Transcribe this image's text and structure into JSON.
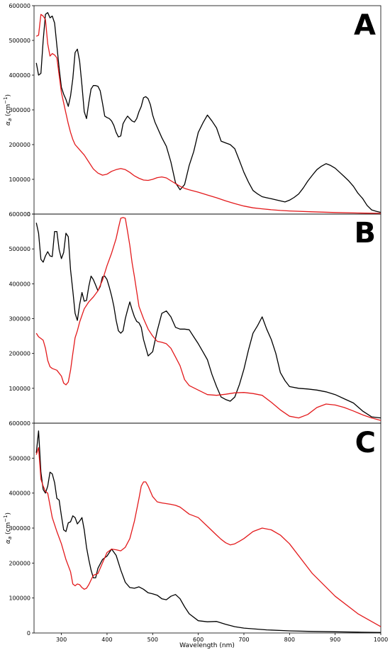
{
  "figure": {
    "xlabel": "Wavelength (nm)",
    "ylabel_main": "α",
    "ylabel_sub": "a",
    "ylabel_unit": " (cm",
    "ylabel_exp": "−1",
    "ylabel_close": ")"
  },
  "chart_data": [
    {
      "type": "line",
      "panel_label": "A",
      "xlim": [
        240,
        1000
      ],
      "ylim": [
        0,
        600000
      ],
      "yticks": [
        "0",
        "100000",
        "200000",
        "300000",
        "400000",
        "500000",
        "600000"
      ],
      "grid": false,
      "series": [
        {
          "color": "#000000",
          "x": [
            245,
            250,
            255,
            260,
            265,
            270,
            275,
            280,
            285,
            290,
            295,
            300,
            305,
            310,
            315,
            320,
            325,
            330,
            335,
            340,
            345,
            350,
            355,
            360,
            365,
            370,
            375,
            380,
            385,
            390,
            395,
            400,
            405,
            410,
            415,
            420,
            425,
            430,
            435,
            440,
            445,
            450,
            455,
            460,
            465,
            470,
            475,
            480,
            485,
            490,
            495,
            500,
            505,
            510,
            520,
            530,
            540,
            550,
            560,
            570,
            580,
            590,
            600,
            610,
            620,
            630,
            640,
            650,
            660,
            670,
            680,
            690,
            700,
            710,
            720,
            730,
            740,
            750,
            760,
            770,
            780,
            790,
            800,
            810,
            820,
            830,
            840,
            850,
            860,
            870,
            880,
            890,
            900,
            910,
            920,
            930,
            940,
            950,
            960,
            970,
            980,
            990,
            1000
          ],
          "y": [
            435000,
            400000,
            405000,
            500000,
            575000,
            580000,
            565000,
            570000,
            550000,
            485000,
            420000,
            365000,
            345000,
            330000,
            310000,
            340000,
            390000,
            465000,
            475000,
            440000,
            370000,
            295000,
            275000,
            320000,
            360000,
            370000,
            370000,
            368000,
            355000,
            320000,
            282000,
            278000,
            275000,
            268000,
            255000,
            235000,
            222000,
            225000,
            260000,
            272000,
            282000,
            275000,
            268000,
            265000,
            275000,
            295000,
            310000,
            335000,
            338000,
            332000,
            315000,
            285000,
            265000,
            250000,
            220000,
            195000,
            150000,
            90000,
            70000,
            85000,
            140000,
            180000,
            235000,
            262000,
            285000,
            268000,
            248000,
            210000,
            205000,
            200000,
            188000,
            155000,
            120000,
            92000,
            68000,
            58000,
            50000,
            47000,
            44000,
            41000,
            38000,
            35000,
            40000,
            48000,
            58000,
            75000,
            95000,
            112000,
            128000,
            138000,
            145000,
            140000,
            132000,
            120000,
            108000,
            95000,
            80000,
            60000,
            45000,
            25000,
            12000,
            8000,
            5000
          ]
        },
        {
          "color": "#e31a1c",
          "x": [
            245,
            250,
            255,
            260,
            265,
            270,
            275,
            280,
            285,
            290,
            295,
            300,
            305,
            310,
            315,
            320,
            325,
            330,
            340,
            350,
            360,
            370,
            380,
            390,
            400,
            410,
            420,
            430,
            440,
            450,
            460,
            470,
            480,
            490,
            500,
            510,
            520,
            530,
            540,
            550,
            560,
            570,
            580,
            600,
            620,
            640,
            660,
            680,
            700,
            720,
            740,
            760,
            780,
            800,
            850,
            900,
            950,
            1000
          ],
          "y": [
            512000,
            515000,
            575000,
            570000,
            560000,
            490000,
            455000,
            462000,
            458000,
            450000,
            400000,
            350000,
            320000,
            290000,
            260000,
            235000,
            215000,
            200000,
            185000,
            170000,
            150000,
            130000,
            118000,
            112000,
            115000,
            123000,
            128000,
            131000,
            128000,
            120000,
            110000,
            103000,
            98000,
            97000,
            100000,
            105000,
            107000,
            104000,
            96000,
            88000,
            80000,
            74000,
            70000,
            63000,
            55000,
            47000,
            38000,
            30000,
            23000,
            18000,
            15000,
            12500,
            10500,
            9000,
            6500,
            4500,
            3000,
            2000
          ]
        }
      ]
    },
    {
      "type": "line",
      "panel_label": "B",
      "xlim": [
        240,
        1000
      ],
      "ylim": [
        0,
        600000
      ],
      "yticks": [
        "100000",
        "200000",
        "300000",
        "400000",
        "500000",
        "600000"
      ],
      "grid": false,
      "series": [
        {
          "color": "#000000",
          "x": [
            245,
            250,
            255,
            260,
            265,
            270,
            275,
            280,
            285,
            290,
            295,
            300,
            305,
            310,
            315,
            320,
            325,
            330,
            335,
            340,
            345,
            350,
            355,
            360,
            365,
            370,
            375,
            380,
            385,
            390,
            395,
            400,
            405,
            410,
            415,
            420,
            425,
            430,
            435,
            440,
            445,
            450,
            455,
            460,
            465,
            470,
            475,
            480,
            490,
            500,
            510,
            520,
            530,
            540,
            550,
            560,
            570,
            580,
            590,
            600,
            610,
            620,
            630,
            640,
            650,
            660,
            670,
            680,
            690,
            700,
            710,
            720,
            730,
            740,
            750,
            760,
            770,
            780,
            790,
            800,
            820,
            840,
            860,
            880,
            900,
            920,
            940,
            960,
            980,
            1000
          ],
          "y": [
            575000,
            545000,
            470000,
            462000,
            480000,
            492000,
            480000,
            478000,
            550000,
            550000,
            498000,
            472000,
            490000,
            545000,
            535000,
            440000,
            380000,
            315000,
            295000,
            340000,
            375000,
            350000,
            352000,
            392000,
            422000,
            412000,
            396000,
            380000,
            392000,
            420000,
            422000,
            412000,
            390000,
            365000,
            335000,
            295000,
            265000,
            258000,
            265000,
            300000,
            325000,
            348000,
            325000,
            305000,
            292000,
            288000,
            275000,
            240000,
            193000,
            205000,
            265000,
            315000,
            322000,
            305000,
            275000,
            270000,
            270000,
            268000,
            248000,
            228000,
            205000,
            182000,
            140000,
            105000,
            75000,
            68000,
            63000,
            75000,
            110000,
            155000,
            210000,
            258000,
            280000,
            305000,
            270000,
            240000,
            200000,
            145000,
            122000,
            105000,
            100000,
            98000,
            95000,
            90000,
            82000,
            70000,
            58000,
            35000,
            18000,
            15000
          ]
        },
        {
          "color": "#e31a1c",
          "x": [
            245,
            250,
            255,
            260,
            265,
            270,
            275,
            280,
            290,
            300,
            305,
            310,
            315,
            320,
            325,
            330,
            335,
            340,
            350,
            360,
            370,
            380,
            390,
            400,
            410,
            420,
            425,
            430,
            435,
            440,
            445,
            450,
            455,
            460,
            470,
            480,
            490,
            500,
            510,
            520,
            530,
            540,
            550,
            560,
            570,
            580,
            600,
            620,
            640,
            660,
            680,
            700,
            720,
            740,
            760,
            780,
            800,
            820,
            840,
            860,
            880,
            900,
            920,
            940,
            960,
            980,
            1000
          ],
          "y": [
            258000,
            248000,
            243000,
            238000,
            215000,
            180000,
            162000,
            157000,
            152000,
            135000,
            115000,
            110000,
            118000,
            152000,
            200000,
            245000,
            265000,
            290000,
            328000,
            348000,
            362000,
            380000,
            410000,
            452000,
            488000,
            530000,
            560000,
            588000,
            590000,
            588000,
            550000,
            510000,
            460000,
            420000,
            335000,
            300000,
            270000,
            250000,
            235000,
            232000,
            228000,
            215000,
            190000,
            165000,
            125000,
            108000,
            95000,
            82000,
            80000,
            83000,
            87000,
            88000,
            85000,
            80000,
            60000,
            38000,
            20000,
            15000,
            25000,
            45000,
            55000,
            52000,
            45000,
            35000,
            24000,
            15000,
            8000
          ]
        }
      ]
    },
    {
      "type": "line",
      "panel_label": "C",
      "xlim": [
        240,
        1000
      ],
      "ylim": [
        0,
        600000
      ],
      "yticks": [
        "0",
        "100000",
        "200000",
        "300000",
        "400000",
        "500000",
        "600000"
      ],
      "xticks": [
        "300",
        "400",
        "500",
        "600",
        "700",
        "800",
        "900",
        "1000"
      ],
      "grid": false,
      "series": [
        {
          "color": "#000000",
          "x": [
            245,
            250,
            255,
            260,
            265,
            270,
            275,
            280,
            285,
            290,
            295,
            300,
            305,
            310,
            315,
            320,
            325,
            330,
            335,
            340,
            345,
            350,
            355,
            360,
            365,
            370,
            375,
            380,
            390,
            400,
            410,
            420,
            430,
            440,
            450,
            460,
            470,
            480,
            490,
            500,
            510,
            520,
            530,
            540,
            550,
            560,
            570,
            580,
            600,
            620,
            640,
            660,
            680,
            700,
            750,
            800,
            850,
            900,
            950,
            1000
          ],
          "y": [
            515000,
            578000,
            460000,
            410000,
            400000,
            420000,
            460000,
            455000,
            430000,
            385000,
            380000,
            335000,
            295000,
            290000,
            315000,
            318000,
            335000,
            330000,
            312000,
            320000,
            330000,
            295000,
            245000,
            210000,
            180000,
            158000,
            158000,
            185000,
            210000,
            220000,
            240000,
            222000,
            180000,
            145000,
            130000,
            128000,
            132000,
            125000,
            115000,
            112000,
            108000,
            98000,
            95000,
            105000,
            110000,
            98000,
            75000,
            55000,
            35000,
            32000,
            33000,
            25000,
            18000,
            14000,
            9000,
            6000,
            4500,
            3500,
            2500,
            1500
          ]
        },
        {
          "color": "#e31a1c",
          "x": [
            245,
            250,
            255,
            260,
            265,
            270,
            280,
            290,
            300,
            310,
            320,
            325,
            330,
            335,
            340,
            345,
            350,
            355,
            360,
            370,
            380,
            390,
            400,
            410,
            420,
            430,
            440,
            450,
            460,
            470,
            475,
            480,
            485,
            490,
            500,
            510,
            520,
            530,
            540,
            550,
            560,
            580,
            600,
            620,
            640,
            650,
            660,
            670,
            680,
            690,
            700,
            720,
            740,
            760,
            780,
            800,
            850,
            900,
            950,
            1000
          ],
          "y": [
            510000,
            530000,
            440000,
            420000,
            405000,
            400000,
            330000,
            290000,
            255000,
            210000,
            175000,
            140000,
            135000,
            140000,
            138000,
            130000,
            125000,
            128000,
            138000,
            165000,
            170000,
            200000,
            230000,
            240000,
            238000,
            235000,
            245000,
            270000,
            320000,
            385000,
            420000,
            432000,
            432000,
            420000,
            390000,
            375000,
            372000,
            370000,
            368000,
            365000,
            360000,
            340000,
            330000,
            305000,
            280000,
            268000,
            258000,
            252000,
            255000,
            262000,
            270000,
            290000,
            300000,
            295000,
            280000,
            255000,
            170000,
            105000,
            55000,
            18000
          ]
        }
      ]
    }
  ]
}
